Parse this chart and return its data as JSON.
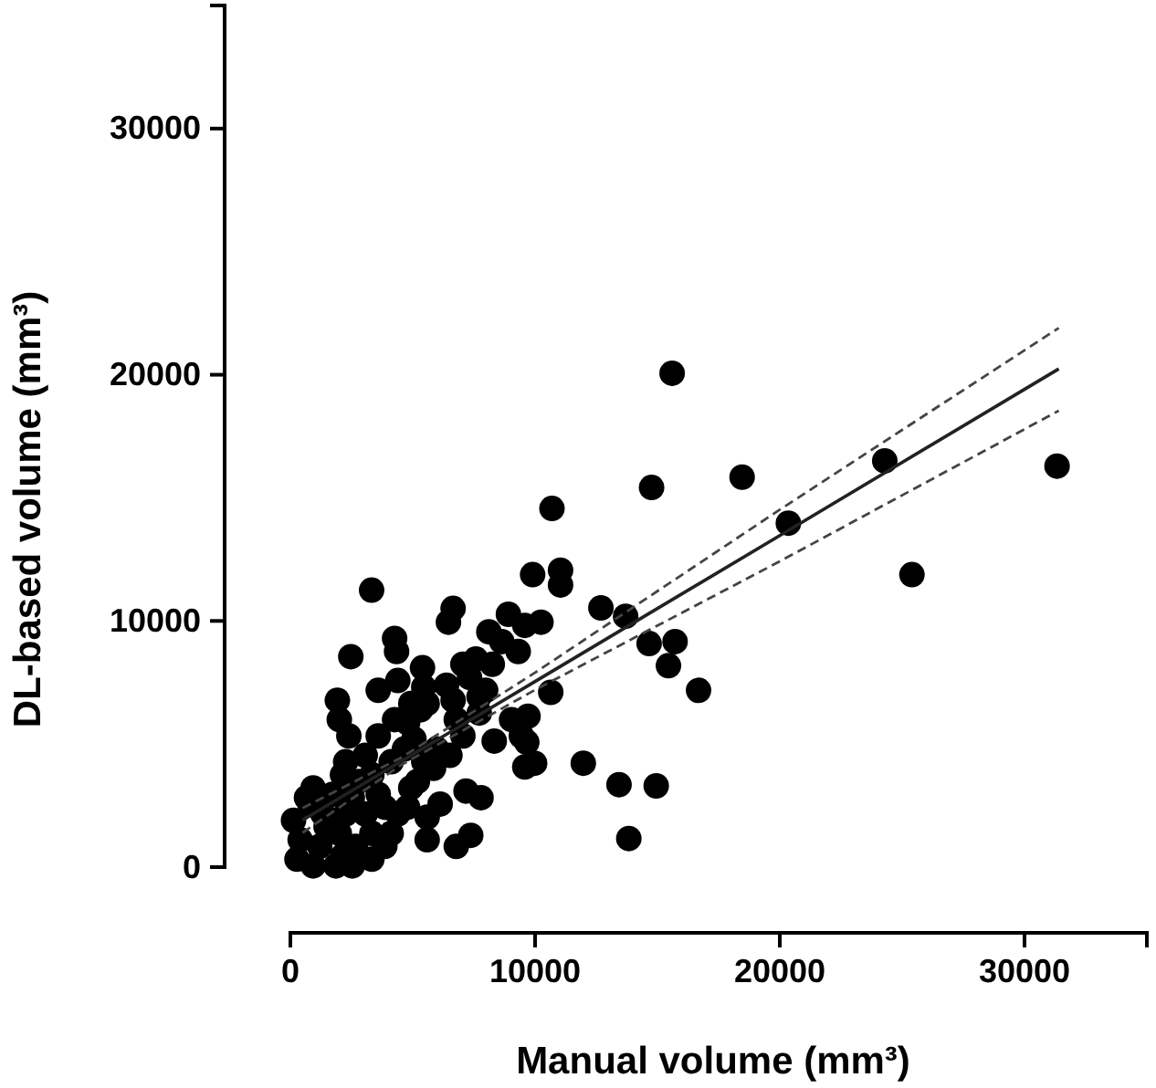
{
  "chart_data": {
    "type": "scatter",
    "xlabel": "Manual volume (mm³)",
    "ylabel": "DL-based volume (mm³)",
    "xlim": [
      0,
      35000
    ],
    "ylim": [
      0,
      35000
    ],
    "xticks": [
      0,
      10000,
      20000,
      30000
    ],
    "yticks": [
      0,
      10000,
      20000,
      30000
    ],
    "grid": false,
    "marker": "circle",
    "series": [
      {
        "type": "scatter",
        "color": "#000000",
        "x": [
          15600,
          24290,
          31330,
          18460,
          14760,
          10690,
          20350,
          25400,
          9900,
          11040,
          11040,
          3320,
          12690,
          13700,
          6650,
          6460,
          8910,
          8110,
          9580,
          10240,
          9310,
          8640,
          14660,
          15720,
          15450,
          16680,
          10640,
          4260,
          4340,
          2470,
          5400,
          7580,
          8250,
          3590,
          4390,
          5450,
          6380,
          7320,
          7980,
          1920,
          4920,
          5590,
          6780,
          7720,
          2000,
          2390,
          3590,
          4260,
          4790,
          9040,
          9710,
          7050,
          8330,
          9440,
          9660,
          9580,
          9980,
          11970,
          13430,
          14950,
          13830,
          5590,
          6780,
          7370,
          7180,
          7790,
          6120,
          5590,
          5850,
          5190,
          4390,
          3860,
          4120,
          3060,
          2260,
          2790,
          3590,
          1730,
          930,
          660,
          130,
          1330,
          2260,
          3060,
          400,
          1200,
          2000,
          2660,
          270,
          930,
          1860,
          3330,
          1460,
          800,
          2530,
          4660,
          5050,
          5450,
          5980,
          6520,
          7710,
          6650,
          7050,
          5320,
          4120,
          3330,
          2130,
          2130,
          3330,
          2530,
          3860,
          4920,
          4790
        ],
        "values": [
          20060,
          16500,
          16290,
          15840,
          15420,
          14570,
          13970,
          11880,
          11880,
          12060,
          11460,
          11250,
          10530,
          10190,
          10510,
          9950,
          10270,
          9560,
          9820,
          9950,
          8760,
          9160,
          9080,
          9160,
          8180,
          7180,
          7100,
          9290,
          8760,
          8550,
          8100,
          8450,
          8240,
          7180,
          7580,
          7310,
          7390,
          7710,
          7180,
          6780,
          6650,
          6650,
          5990,
          6260,
          5990,
          5330,
          5330,
          5990,
          5860,
          5990,
          6130,
          5330,
          5120,
          5330,
          5070,
          4070,
          4220,
          4220,
          3350,
          3300,
          1160,
          1110,
          840,
          1290,
          3090,
          2820,
          2560,
          2030,
          4010,
          3480,
          2160,
          840,
          1370,
          4540,
          4280,
          3480,
          2960,
          2960,
          3220,
          2820,
          1900,
          2160,
          2160,
          2160,
          1110,
          840,
          1370,
          840,
          320,
          50,
          50,
          1370,
          1640,
          2560,
          2820,
          4800,
          5200,
          4280,
          4800,
          4540,
          6920,
          6780,
          8240,
          6390,
          4280,
          3750,
          3750,
          450,
          320,
          50,
          2430,
          3220,
          2430
        ]
      },
      {
        "type": "line",
        "marker": "none",
        "color": "#222222",
        "line_style": "solid",
        "x": [
          500,
          4500,
          10000,
          20000,
          31400
        ],
        "values": [
          1910,
          4280,
          7540,
          13470,
          20240
        ]
      },
      {
        "type": "line",
        "marker": "none",
        "color": "#444444",
        "line_style": "dashed",
        "x": [
          500,
          4500,
          10000,
          20000,
          31400
        ],
        "values": [
          2400,
          4430,
          7900,
          14520,
          21900
        ]
      },
      {
        "type": "line",
        "marker": "none",
        "color": "#444444",
        "line_style": "dashed",
        "x": [
          500,
          4500,
          10000,
          20000,
          31400
        ],
        "values": [
          1400,
          4130,
          7200,
          12420,
          18540
        ]
      }
    ]
  }
}
